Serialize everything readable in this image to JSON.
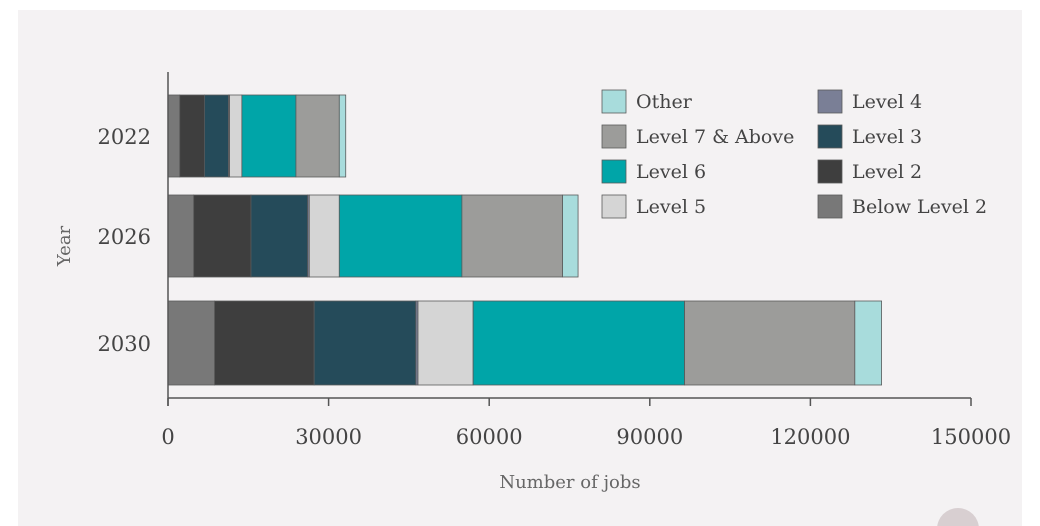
{
  "chart_data": {
    "type": "bar",
    "orientation": "horizontal",
    "stacked": true,
    "xlabel": "Number of jobs",
    "ylabel": "Year",
    "xlim": [
      0,
      150000
    ],
    "x_ticks": [
      "0",
      "30000",
      "60000",
      "90000",
      "120000",
      "150000"
    ],
    "categories": [
      "2022",
      "2026",
      "2030"
    ],
    "series": [
      {
        "name": "Below Level 2",
        "color": "#787878",
        "values": [
          2200,
          4800,
          8700
        ]
      },
      {
        "name": "Level 2",
        "color": "#3e3e3e",
        "values": [
          4600,
          10700,
          18600
        ]
      },
      {
        "name": "Level 3",
        "color": "#254b5a",
        "values": [
          4500,
          10600,
          19000
        ]
      },
      {
        "name": "Level 4",
        "color": "#7a7f96",
        "values": [
          200,
          300,
          400
        ]
      },
      {
        "name": "Level 5",
        "color": "#d5d5d5",
        "values": [
          2300,
          5600,
          10300
        ]
      },
      {
        "name": "Level 6",
        "color": "#00a5a8",
        "values": [
          10100,
          22900,
          39500
        ]
      },
      {
        "name": "Level 7 & Above",
        "color": "#9c9c9a",
        "values": [
          8100,
          18800,
          31800
        ]
      },
      {
        "name": "Other",
        "color": "#a8dcdc",
        "values": [
          1200,
          2900,
          5000
        ]
      }
    ],
    "legend": {
      "placement": "top-right",
      "order": [
        "Other",
        "Level 4",
        "Level 7 & Above",
        "Level 3",
        "Level 6",
        "Level 2",
        "Level 5",
        "Below Level 2"
      ]
    },
    "grid": false
  }
}
